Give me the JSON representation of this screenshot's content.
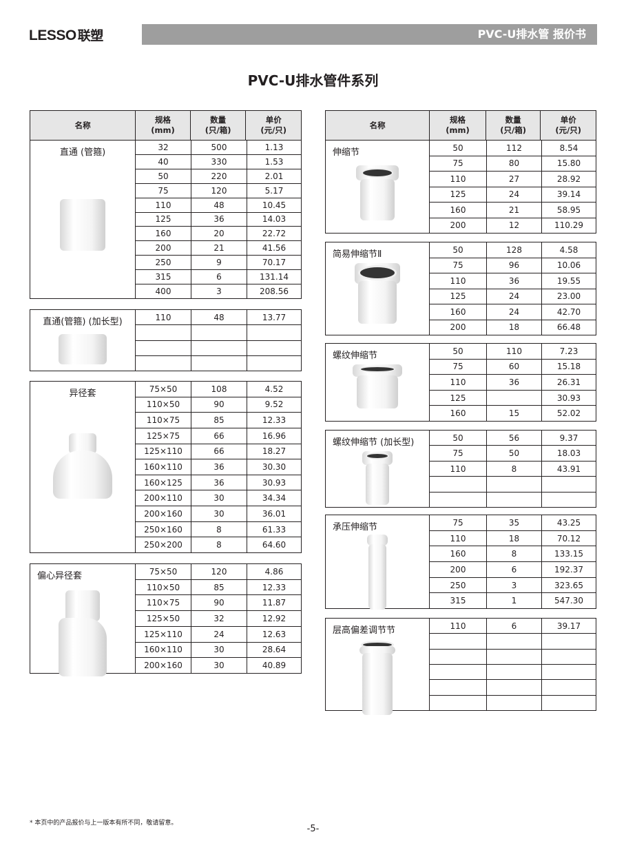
{
  "header": {
    "logo": "LESSO",
    "logo_cn": "联塑",
    "banner": "PVC-U排水管 报价书"
  },
  "title": "PVC-U排水管件系列",
  "columns": {
    "name": "名称",
    "spec": [
      "规格",
      "(mm)"
    ],
    "qty": [
      "数量",
      "(只/箱)"
    ],
    "price": [
      "单价",
      "(元/只)"
    ]
  },
  "left_products": [
    {
      "name": "直通 (管箍)",
      "rows": [
        [
          "32",
          "500",
          "1.13"
        ],
        [
          "40",
          "330",
          "1.53"
        ],
        [
          "50",
          "220",
          "2.01"
        ],
        [
          "75",
          "120",
          "5.17"
        ],
        [
          "110",
          "48",
          "10.45"
        ],
        [
          "125",
          "36",
          "14.03"
        ],
        [
          "160",
          "20",
          "22.72"
        ],
        [
          "200",
          "21",
          "41.56"
        ],
        [
          "250",
          "9",
          "70.17"
        ],
        [
          "315",
          "6",
          "131.14"
        ],
        [
          "400",
          "3",
          "208.56"
        ]
      ]
    },
    {
      "name": "直通(管箍) (加长型)",
      "rows": [
        [
          "110",
          "48",
          "13.77"
        ],
        [
          "",
          "",
          ""
        ],
        [
          "",
          "",
          ""
        ],
        [
          "",
          "",
          ""
        ]
      ]
    },
    {
      "name": "异径套",
      "rows": [
        [
          "75×50",
          "108",
          "4.52"
        ],
        [
          "110×50",
          "90",
          "9.52"
        ],
        [
          "110×75",
          "85",
          "12.33"
        ],
        [
          "125×75",
          "66",
          "16.96"
        ],
        [
          "125×110",
          "66",
          "18.27"
        ],
        [
          "160×110",
          "36",
          "30.30"
        ],
        [
          "160×125",
          "36",
          "30.93"
        ],
        [
          "200×110",
          "30",
          "34.34"
        ],
        [
          "200×160",
          "30",
          "36.01"
        ],
        [
          "250×160",
          "8",
          "61.33"
        ],
        [
          "250×200",
          "8",
          "64.60"
        ]
      ]
    },
    {
      "name": "偏心异径套",
      "rows": [
        [
          "75×50",
          "120",
          "4.86"
        ],
        [
          "110×50",
          "85",
          "12.33"
        ],
        [
          "110×75",
          "90",
          "11.87"
        ],
        [
          "125×50",
          "32",
          "12.92"
        ],
        [
          "125×110",
          "24",
          "12.63"
        ],
        [
          "160×110",
          "30",
          "28.64"
        ],
        [
          "200×160",
          "30",
          "40.89"
        ]
      ]
    }
  ],
  "right_products": [
    {
      "name": "伸缩节",
      "rows": [
        [
          "50",
          "112",
          "8.54"
        ],
        [
          "75",
          "80",
          "15.80"
        ],
        [
          "110",
          "27",
          "28.92"
        ],
        [
          "125",
          "24",
          "39.14"
        ],
        [
          "160",
          "21",
          "58.95"
        ],
        [
          "200",
          "12",
          "110.29"
        ]
      ]
    },
    {
      "name": "简易伸缩节Ⅱ",
      "rows": [
        [
          "50",
          "128",
          "4.58"
        ],
        [
          "75",
          "96",
          "10.06"
        ],
        [
          "110",
          "36",
          "19.55"
        ],
        [
          "125",
          "24",
          "23.00"
        ],
        [
          "160",
          "24",
          "42.70"
        ],
        [
          "200",
          "18",
          "66.48"
        ]
      ]
    },
    {
      "name": "螺纹伸缩节",
      "rows": [
        [
          "50",
          "110",
          "7.23"
        ],
        [
          "75",
          "60",
          "15.18"
        ],
        [
          "110",
          "36",
          "26.31"
        ],
        [
          "125",
          "",
          "30.93"
        ],
        [
          "160",
          "15",
          "52.02"
        ]
      ]
    },
    {
      "name": "螺纹伸缩节 (加长型)",
      "rows": [
        [
          "50",
          "56",
          "9.37"
        ],
        [
          "75",
          "50",
          "18.03"
        ],
        [
          "110",
          "8",
          "43.91"
        ],
        [
          "",
          "",
          ""
        ],
        [
          "",
          "",
          ""
        ]
      ]
    },
    {
      "name": "承压伸缩节",
      "rows": [
        [
          "75",
          "35",
          "43.25"
        ],
        [
          "110",
          "18",
          "70.12"
        ],
        [
          "160",
          "8",
          "133.15"
        ],
        [
          "200",
          "6",
          "192.37"
        ],
        [
          "250",
          "3",
          "323.65"
        ],
        [
          "315",
          "1",
          "547.30"
        ]
      ]
    },
    {
      "name": "层高偏差调节节",
      "rows": [
        [
          "110",
          "6",
          "39.17"
        ],
        [
          "",
          "",
          ""
        ],
        [
          "",
          "",
          ""
        ],
        [
          "",
          "",
          ""
        ],
        [
          "",
          "",
          ""
        ],
        [
          "",
          "",
          ""
        ]
      ]
    }
  ],
  "footnote": "* 本页中的产品报价与上一版本有所不同，敬请留意。",
  "page_number": "-5-"
}
